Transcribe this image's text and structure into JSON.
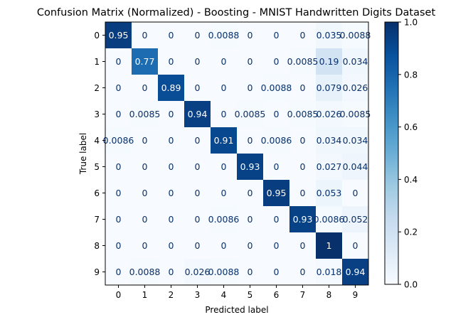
{
  "chart_data": {
    "type": "heatmap",
    "title": "Confusion Matrix (Normalized) - Boosting - MNIST Handwritten Digits Dataset",
    "xlabel": "Predicted label",
    "ylabel": "True label",
    "x_categories": [
      "0",
      "1",
      "2",
      "3",
      "4",
      "5",
      "6",
      "7",
      "8",
      "9"
    ],
    "y_categories": [
      "0",
      "1",
      "2",
      "3",
      "4",
      "5",
      "6",
      "7",
      "8",
      "9"
    ],
    "matrix": [
      [
        0.95,
        0,
        0,
        0,
        0.0088,
        0,
        0,
        0,
        0.035,
        0.0088
      ],
      [
        0,
        0.77,
        0,
        0,
        0,
        0,
        0,
        0.0085,
        0.19,
        0.034
      ],
      [
        0,
        0,
        0.89,
        0,
        0,
        0,
        0.0088,
        0,
        0.079,
        0.026
      ],
      [
        0,
        0.0085,
        0,
        0.94,
        0,
        0.0085,
        0,
        0.0085,
        0.026,
        0.0085
      ],
      [
        0.0086,
        0,
        0,
        0,
        0.91,
        0,
        0.0086,
        0,
        0.034,
        0.034
      ],
      [
        0,
        0,
        0,
        0,
        0,
        0.93,
        0,
        0,
        0.027,
        0.044
      ],
      [
        0,
        0,
        0,
        0,
        0,
        0,
        0.95,
        0,
        0.053,
        0
      ],
      [
        0,
        0,
        0,
        0,
        0.0086,
        0,
        0,
        0.93,
        0.0086,
        0.052
      ],
      [
        0,
        0,
        0,
        0,
        0,
        0,
        0,
        0,
        1,
        0
      ],
      [
        0,
        0.0088,
        0,
        0.026,
        0.0088,
        0,
        0,
        0,
        0.018,
        0.94
      ]
    ],
    "colormap": "Blues",
    "vmin": 0,
    "vmax": 1,
    "colorbar_ticks": [
      "0.0",
      "0.2",
      "0.4",
      "0.6",
      "0.8",
      "1.0"
    ]
  }
}
